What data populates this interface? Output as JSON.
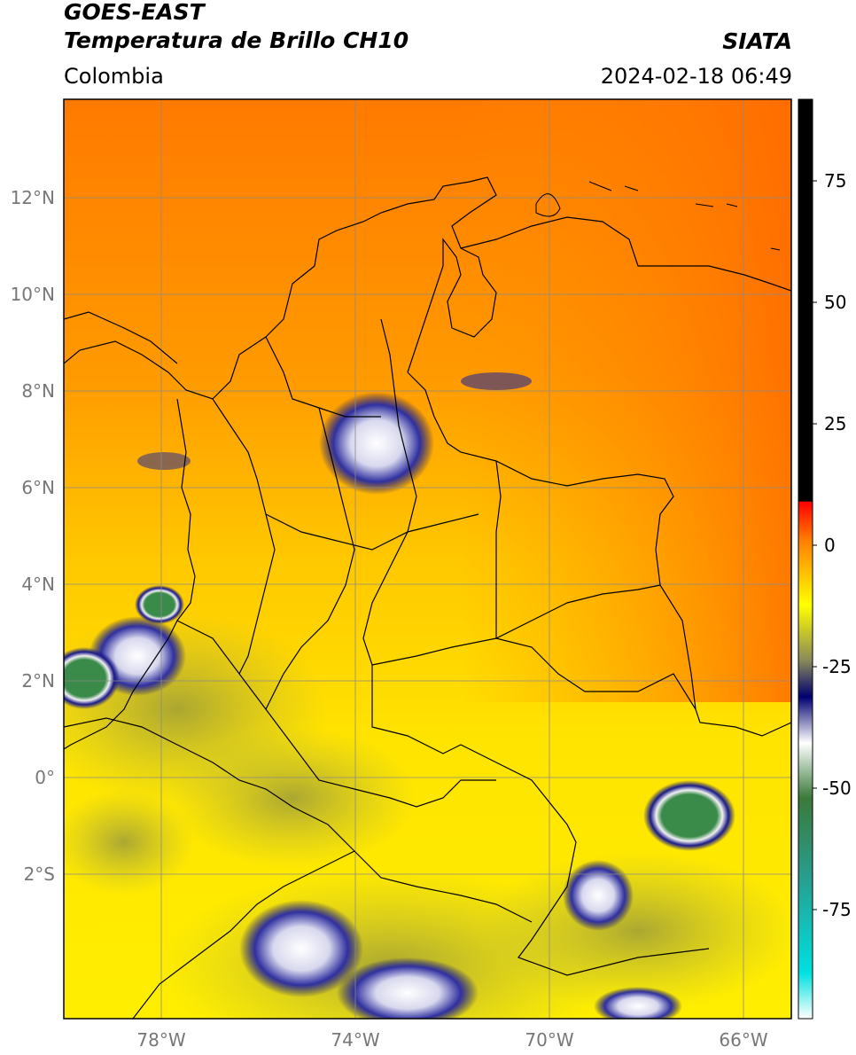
{
  "header": {
    "line1": "GOES-EAST",
    "line2": "Temperatura de Brillo CH10",
    "region": "Colombia",
    "source": "SIATA",
    "datetime": "2024-02-18 06:49"
  },
  "map": {
    "lat_labels": [
      "12°N",
      "10°N",
      "8°N",
      "6°N",
      "4°N",
      "2°N",
      "0°",
      "2°S"
    ],
    "lon_labels": [
      "78°W",
      "74°W",
      "70°W",
      "66°W"
    ],
    "colors": {
      "ocean_warm": "#ff7a00",
      "land_mid": "#ffb000",
      "land_cool": "#ffe000",
      "cloud_olive": "#a8a83a",
      "cloud_navy": "#101080",
      "cloud_white": "#f0f0f0",
      "cloud_green": "#3a8a4a",
      "border": "#000000",
      "grid": "#888888"
    }
  },
  "colorbar": {
    "ticks": [
      "75",
      "50",
      "25",
      "0",
      "-25",
      "-50",
      "-75"
    ],
    "stops": [
      "#ffffff",
      "#00e0e0",
      "#2a9a8a",
      "#3a7a3a",
      "#ffffff",
      "#000070",
      "#8a8a5a",
      "#ffff00",
      "#ff8000",
      "#ff0000",
      "#000000"
    ]
  }
}
